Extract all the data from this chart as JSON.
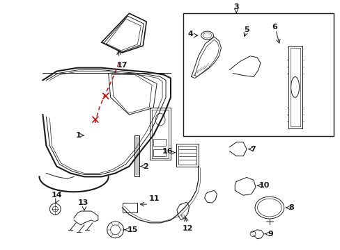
{
  "background_color": "#ffffff",
  "line_color": "#1a1a1a",
  "red_color": "#cc0000",
  "figsize": [
    4.89,
    3.6
  ],
  "dpi": 100
}
